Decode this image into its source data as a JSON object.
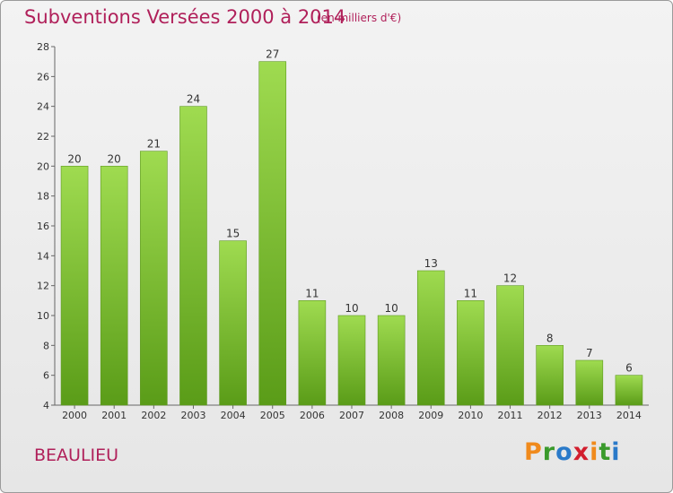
{
  "header": {
    "title": "Subventions Versées 2000 à 2014",
    "subtitle": "(en milliers d'€)"
  },
  "footer": {
    "commune": "BEAULIEU",
    "logo": [
      "P",
      "r",
      "o",
      "x",
      "i",
      "t",
      "i"
    ]
  },
  "colors": {
    "title": "#b0205a",
    "bar_top": "#9fdb50",
    "bar_bottom": "#5a9c18",
    "logo": [
      "#f08a1c",
      "#3a9a2c",
      "#2a7ac9",
      "#d21e2e",
      "#f08a1c",
      "#3a9a2c",
      "#2a7ac9"
    ]
  },
  "chart_data": {
    "type": "bar",
    "categories": [
      "2000",
      "2001",
      "2002",
      "2003",
      "2004",
      "2005",
      "2006",
      "2007",
      "2008",
      "2009",
      "2010",
      "2011",
      "2012",
      "2013",
      "2014"
    ],
    "values": [
      20,
      20,
      21,
      24,
      15,
      27,
      11,
      10,
      10,
      13,
      11,
      12,
      8,
      7,
      6
    ],
    "title": "Subventions Versées 2000 à 2014",
    "subtitle": "(en milliers d'€)",
    "xlabel": "",
    "ylabel": "",
    "ylim": [
      4,
      28
    ],
    "yticks": [
      4,
      6,
      8,
      10,
      12,
      14,
      16,
      18,
      20,
      22,
      24,
      26,
      28
    ],
    "grid": false,
    "legend": "none",
    "data_labels": true
  }
}
